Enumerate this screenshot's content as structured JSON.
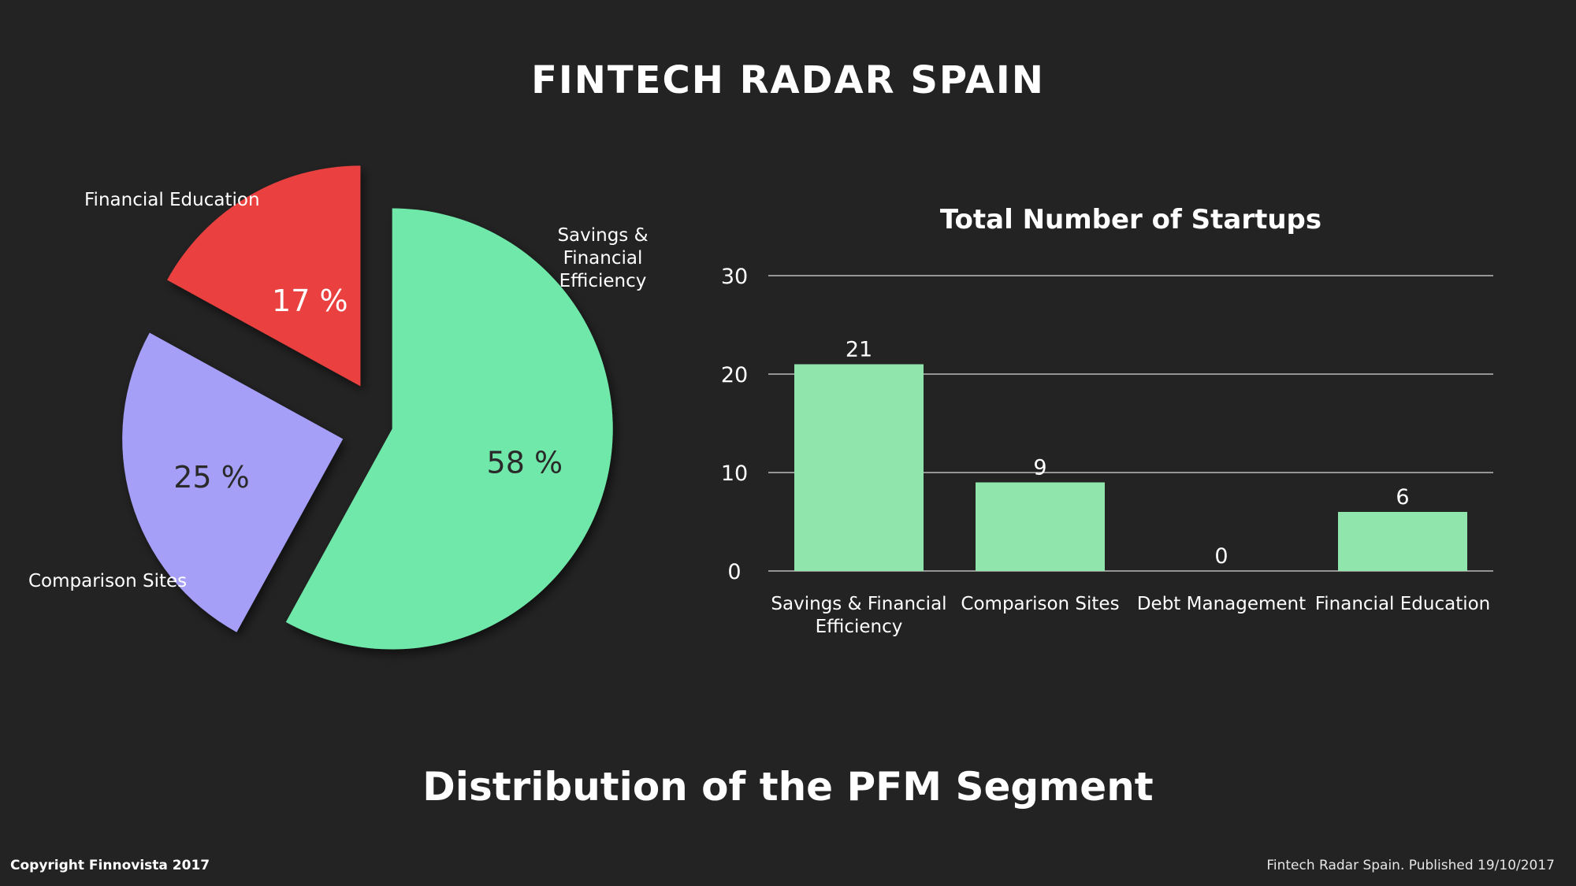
{
  "header": {
    "title": "FINTECH RADAR SPAIN"
  },
  "subtitle": "Distribution of the PFM Segment",
  "footer": {
    "copyright": "Copyright Finnovista 2017",
    "published": "Fintech Radar Spain. Published 19/10/2017"
  },
  "colors": {
    "background": "#232323",
    "savings": "#70e8aa",
    "comparison": "#a59ff7",
    "education": "#ea4141",
    "bar": "#90e5ad",
    "grid": "#d9d9d9"
  },
  "chart_data": [
    {
      "type": "pie",
      "exploded": true,
      "slices": [
        {
          "name": "Savings & Financial Efficiency",
          "label_lines": [
            "Savings &",
            "Financial",
            "Efficiency"
          ],
          "value": 58,
          "pct_label": "58 %",
          "color": "#70e8aa",
          "pct_color": "#2a2a2a"
        },
        {
          "name": "Comparison Sites",
          "label_lines": [
            "Comparison Sites"
          ],
          "value": 25,
          "pct_label": "25 %",
          "color": "#a59ff7",
          "pct_color": "#2a2a2a"
        },
        {
          "name": "Financial Education",
          "label_lines": [
            "Financial Education"
          ],
          "value": 17,
          "pct_label": "17 %",
          "color": "#ea4141",
          "pct_color": "#ffffff"
        }
      ]
    },
    {
      "type": "bar",
      "title": "Total Number of Startups",
      "categories": [
        "Savings & Financial Efficiency",
        "Comparison Sites",
        "Debt Management",
        "Financial Education"
      ],
      "category_lines": [
        [
          "Savings & Financial",
          "Efficiency"
        ],
        [
          "Comparison Sites"
        ],
        [
          "Debt Management"
        ],
        [
          "Financial Education"
        ]
      ],
      "values": [
        21,
        9,
        0,
        6
      ],
      "ylim": [
        0,
        30
      ],
      "yticks": [
        0,
        10,
        20,
        30
      ],
      "grid": true,
      "data_labels": true,
      "xlabel": "",
      "ylabel": ""
    }
  ]
}
